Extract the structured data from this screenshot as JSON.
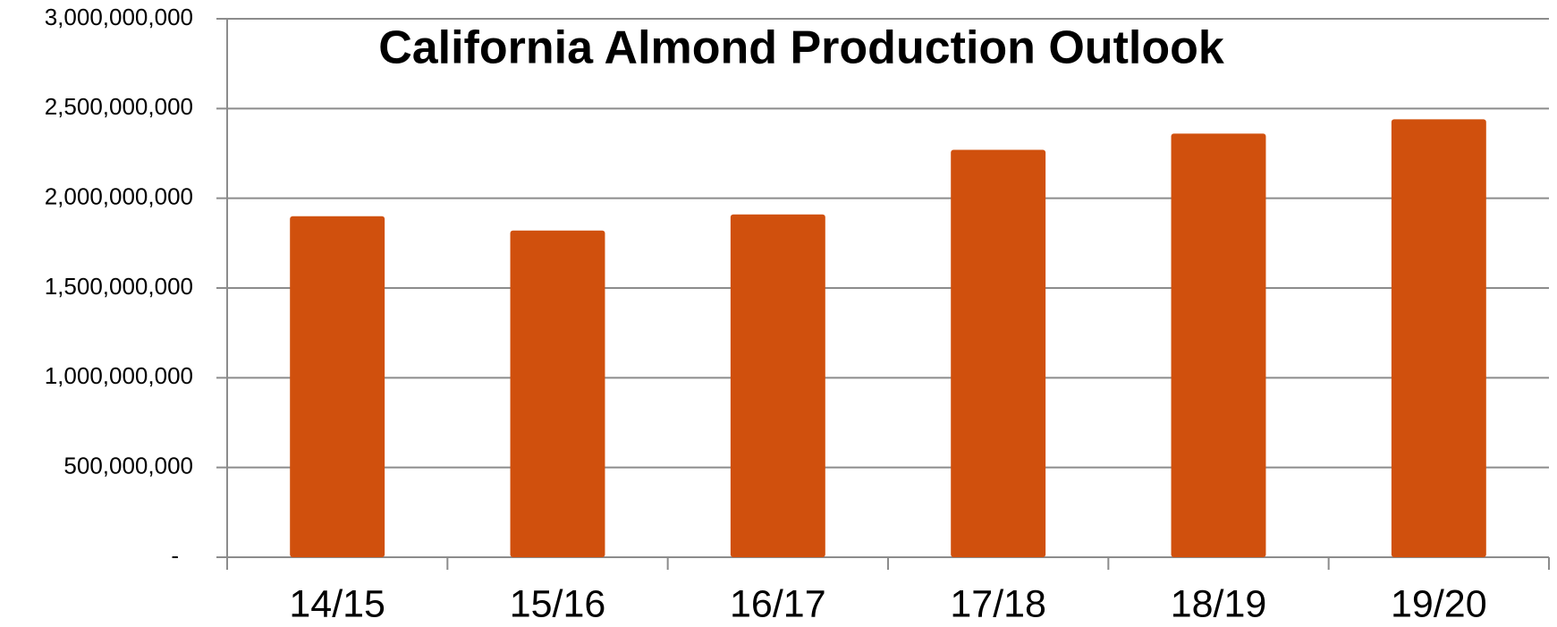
{
  "chart_data": {
    "type": "bar",
    "title": "California Almond Production Outlook",
    "categories": [
      "14/15",
      "15/16",
      "16/17",
      "17/18",
      "18/19",
      "19/20"
    ],
    "values": [
      1900000000,
      1820000000,
      1910000000,
      2270000000,
      2360000000,
      2440000000
    ],
    "color": "#d0500d",
    "ylim": [
      0,
      3000000000
    ],
    "yticks": [
      {
        "value": 0,
        "label": "-"
      },
      {
        "value": 500000000,
        "label": "500,000,000"
      },
      {
        "value": 1000000000,
        "label": "1,000,000,000"
      },
      {
        "value": 1500000000,
        "label": "1,500,000,000"
      },
      {
        "value": 2000000000,
        "label": "2,000,000,000"
      },
      {
        "value": 2500000000,
        "label": "2,500,000,000"
      },
      {
        "value": 3000000000,
        "label": "3,000,000,000"
      }
    ],
    "grid": true
  }
}
